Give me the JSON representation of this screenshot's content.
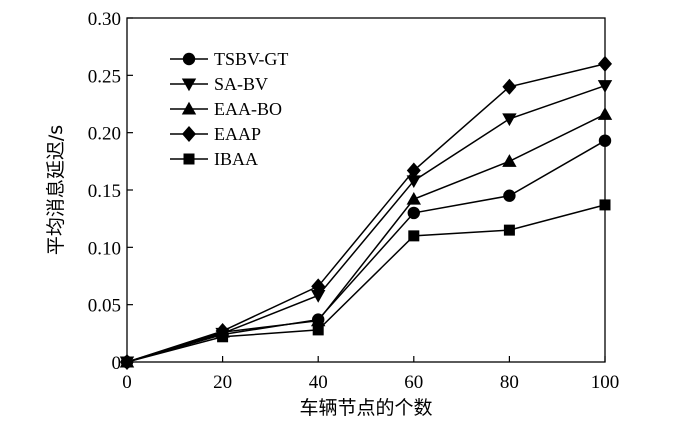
{
  "chart_data": {
    "type": "line",
    "title": "",
    "xlabel": "车辆节点的个数",
    "ylabel": "平均消息延迟/s",
    "x": [
      0,
      20,
      40,
      60,
      80,
      100
    ],
    "xlim": [
      0,
      100
    ],
    "ylim": [
      0,
      0.3
    ],
    "xticks": [
      "0",
      "20",
      "40",
      "60",
      "80",
      "100"
    ],
    "yticks": [
      "0",
      "0.05",
      "0.10",
      "0.15",
      "0.20",
      "0.25",
      "0.30"
    ],
    "grid": false,
    "legend_position": "top-left",
    "series": [
      {
        "name": "TSBV-GT",
        "marker": "circle",
        "values": [
          0,
          0.024,
          0.037,
          0.13,
          0.145,
          0.193
        ]
      },
      {
        "name": "SA-BV",
        "marker": "triangle-down",
        "values": [
          0,
          0.025,
          0.058,
          0.158,
          0.212,
          0.241
        ]
      },
      {
        "name": "EAA-BO",
        "marker": "triangle-up",
        "values": [
          0,
          0.026,
          0.036,
          0.142,
          0.175,
          0.216
        ]
      },
      {
        "name": "EAAP",
        "marker": "diamond",
        "values": [
          0,
          0.027,
          0.066,
          0.167,
          0.24,
          0.26
        ]
      },
      {
        "name": "IBAA",
        "marker": "square",
        "values": [
          0,
          0.022,
          0.028,
          0.11,
          0.115,
          0.137
        ]
      }
    ]
  }
}
